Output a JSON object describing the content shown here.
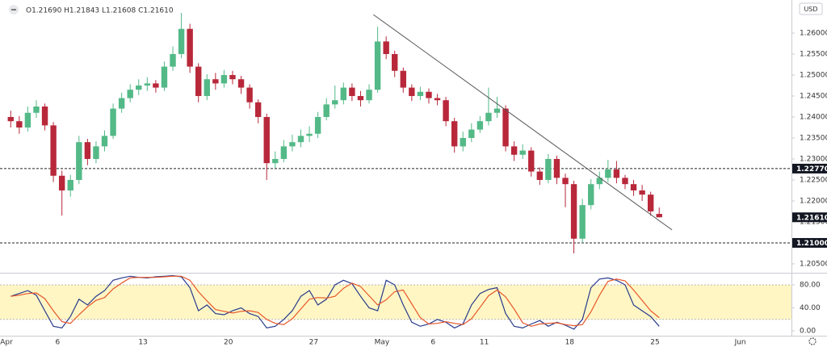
{
  "chart_data": [
    {
      "type": "candlestick",
      "ohlc_legend": "O1.21690 H1.21843 L1.21608 C1.21610",
      "currency": "USD",
      "up_color": "#53b987",
      "down_color": "#b8283a",
      "categories": [
        "Apr",
        null,
        null,
        null,
        null,
        null,
        "6",
        null,
        null,
        null,
        null,
        null,
        null,
        null,
        null,
        null,
        "13",
        null,
        null,
        null,
        null,
        null,
        null,
        null,
        null,
        null,
        "20",
        null,
        null,
        null,
        null,
        null,
        null,
        null,
        null,
        null,
        "27",
        null,
        null,
        null,
        null,
        null,
        null,
        null,
        "May",
        null,
        null,
        null,
        null,
        null,
        "6",
        null,
        null,
        null,
        null,
        null,
        "11",
        null,
        null,
        null,
        null,
        null,
        null,
        null,
        null,
        null,
        "18",
        null,
        null,
        null,
        null,
        null,
        null,
        null,
        null,
        null,
        "25",
        null,
        null,
        null,
        null,
        null,
        null,
        null,
        null,
        null,
        "Jun",
        null,
        null,
        null,
        null,
        null
      ],
      "open": [
        1.24,
        1.239,
        1.2375,
        1.241,
        1.2425,
        1.238,
        1.226,
        1.2225,
        1.225,
        1.234,
        1.23,
        1.233,
        1.2355,
        1.242,
        1.2445,
        1.2465,
        1.2475,
        1.248,
        1.247,
        1.252,
        1.255,
        1.261,
        1.252,
        1.245,
        1.249,
        1.248,
        1.25,
        1.249,
        1.247,
        1.2435,
        1.24,
        1.229,
        1.23,
        1.233,
        1.234,
        1.2355,
        1.236,
        1.24,
        1.243,
        1.244,
        1.247,
        1.245,
        1.244,
        1.2465,
        1.258,
        1.255,
        1.251,
        1.247,
        1.245,
        1.246,
        1.2445,
        1.244,
        1.239,
        1.233,
        1.235,
        1.237,
        1.239,
        1.241,
        1.242,
        1.233,
        1.231,
        1.232,
        1.227,
        1.225,
        1.23,
        1.2255,
        1.224,
        1.211,
        1.219,
        1.224,
        1.2255,
        1.2275,
        1.2255,
        1.224,
        1.2225,
        1.2215,
        1.2169,
        null,
        null,
        null,
        null,
        null,
        null,
        null,
        null,
        null,
        null,
        null,
        null,
        null,
        null,
        null
      ],
      "high": [
        1.2415,
        1.2402,
        1.2425,
        1.244,
        1.2432,
        1.2388,
        1.2272,
        1.2262,
        1.2355,
        1.2348,
        1.2342,
        1.2368,
        1.2432,
        1.2458,
        1.2478,
        1.249,
        1.2495,
        1.2488,
        1.2532,
        1.2568,
        1.2648,
        1.2622,
        1.2528,
        1.2502,
        1.2505,
        1.2512,
        1.251,
        1.2498,
        1.2478,
        1.2442,
        1.2408,
        1.2318,
        1.2345,
        1.2358,
        1.237,
        1.2378,
        1.2412,
        1.2445,
        1.2475,
        1.2482,
        1.248,
        1.2462,
        1.2478,
        1.2615,
        1.2592,
        1.2558,
        1.2518,
        1.2478,
        1.2472,
        1.2468,
        1.2455,
        1.2448,
        1.2398,
        1.2365,
        1.2385,
        1.2402,
        1.247,
        1.2448,
        1.2428,
        1.2342,
        1.2335,
        1.2328,
        1.228,
        1.2312,
        1.2308,
        1.2265,
        1.2248,
        1.2205,
        1.2252,
        1.227,
        1.2298,
        1.2295,
        1.2262,
        1.225,
        1.2238,
        1.2222,
        1.21843,
        null,
        null,
        null,
        null,
        null,
        null,
        null,
        null,
        null,
        null,
        null,
        null,
        null,
        null,
        null
      ],
      "low": [
        1.2375,
        1.236,
        1.2365,
        1.2398,
        1.2368,
        1.2245,
        1.2165,
        1.221,
        1.224,
        1.2285,
        1.229,
        1.2318,
        1.2348,
        1.241,
        1.2435,
        1.2452,
        1.2462,
        1.2458,
        1.2462,
        1.251,
        1.254,
        1.2505,
        1.2435,
        1.244,
        1.2465,
        1.247,
        1.2478,
        1.2455,
        1.242,
        1.2385,
        1.225,
        1.2278,
        1.2292,
        1.2318,
        1.2328,
        1.234,
        1.235,
        1.2392,
        1.242,
        1.243,
        1.2438,
        1.2425,
        1.2432,
        1.2458,
        1.2538,
        1.2495,
        1.2458,
        1.2438,
        1.244,
        1.2432,
        1.2428,
        1.2378,
        1.2315,
        1.2318,
        1.234,
        1.2362,
        1.238,
        1.2398,
        1.2318,
        1.2295,
        1.23,
        1.2258,
        1.2238,
        1.2242,
        1.224,
        1.2185,
        1.2075,
        1.21,
        1.218,
        1.2228,
        1.2245,
        1.2242,
        1.2228,
        1.2212,
        1.22,
        1.2165,
        1.21608,
        null,
        null,
        null,
        null,
        null,
        null,
        null,
        null,
        null,
        null,
        null,
        null,
        null,
        null,
        null
      ],
      "close": [
        1.239,
        1.2375,
        1.241,
        1.2425,
        1.238,
        1.226,
        1.2225,
        1.225,
        1.234,
        1.23,
        1.233,
        1.2355,
        1.242,
        1.2445,
        1.2465,
        1.2475,
        1.248,
        1.247,
        1.252,
        1.255,
        1.261,
        1.252,
        1.245,
        1.249,
        1.248,
        1.25,
        1.249,
        1.247,
        1.2435,
        1.24,
        1.229,
        1.23,
        1.233,
        1.234,
        1.2355,
        1.236,
        1.24,
        1.243,
        1.244,
        1.247,
        1.245,
        1.244,
        1.2465,
        1.258,
        1.255,
        1.251,
        1.247,
        1.245,
        1.246,
        1.2445,
        1.244,
        1.239,
        1.233,
        1.235,
        1.237,
        1.239,
        1.241,
        1.242,
        1.233,
        1.231,
        1.232,
        1.227,
        1.225,
        1.23,
        1.2255,
        1.224,
        1.211,
        1.219,
        1.224,
        1.2255,
        1.2275,
        1.2255,
        1.224,
        1.2225,
        1.2215,
        1.2175,
        1.2161,
        null,
        null,
        null,
        null,
        null,
        null,
        null,
        null,
        null,
        null,
        null,
        null,
        null,
        null,
        null
      ],
      "ylim": [
        1.20288,
        1.26788
      ],
      "yticks": [
        {
          "value": 1.205,
          "label": "1.20500"
        },
        {
          "value": 1.21,
          "label": "1.21000"
        },
        {
          "value": 1.215,
          "label": "1.21500"
        },
        {
          "value": 1.22,
          "label": "1.22000"
        },
        {
          "value": 1.225,
          "label": "1.22500"
        },
        {
          "value": 1.23,
          "label": "1.23000"
        },
        {
          "value": 1.235,
          "label": "1.23500"
        },
        {
          "value": 1.24,
          "label": "1.24000"
        },
        {
          "value": 1.245,
          "label": "1.24500"
        },
        {
          "value": 1.25,
          "label": "1.25000"
        },
        {
          "value": 1.255,
          "label": "1.25500"
        },
        {
          "value": 1.26,
          "label": "1.26000"
        }
      ],
      "levels": [
        {
          "value": 1.2277,
          "label": "1.22770"
        },
        {
          "value": 1.21,
          "label": "1.21000"
        }
      ],
      "last_price": {
        "value": 1.2161,
        "label": "1.21610"
      },
      "trendline": {
        "x": [
          43,
          78
        ],
        "y": [
          1.2644,
          1.2131
        ],
        "color": "#555555"
      }
    },
    {
      "type": "stochastic",
      "series": [
        {
          "color": "#283a8c",
          "values": [
            60,
            65,
            70,
            62,
            35,
            8,
            5,
            25,
            55,
            45,
            60,
            70,
            88,
            92,
            95,
            93,
            92,
            94,
            95,
            96,
            94,
            75,
            35,
            45,
            30,
            28,
            35,
            40,
            30,
            25,
            5,
            8,
            20,
            35,
            60,
            70,
            45,
            55,
            80,
            88,
            82,
            60,
            40,
            35,
            88,
            80,
            45,
            15,
            8,
            12,
            20,
            15,
            5,
            12,
            45,
            65,
            72,
            75,
            30,
            8,
            5,
            12,
            18,
            8,
            15,
            10,
            3,
            20,
            75,
            90,
            92,
            88,
            80,
            45,
            35,
            25,
            8,
            null,
            null,
            null,
            null,
            null,
            null,
            null,
            null,
            null,
            null,
            null,
            null,
            null,
            null,
            null
          ]
        },
        {
          "color": "#e8572a",
          "values": [
            60,
            62,
            65,
            66,
            56,
            35,
            16,
            13,
            28,
            42,
            53,
            58,
            73,
            83,
            92,
            93,
            93,
            93,
            94,
            95,
            95,
            88,
            68,
            52,
            37,
            34,
            31,
            34,
            35,
            32,
            20,
            13,
            11,
            21,
            38,
            55,
            58,
            57,
            60,
            74,
            83,
            77,
            61,
            45,
            54,
            68,
            71,
            47,
            23,
            12,
            13,
            16,
            13,
            11,
            21,
            41,
            61,
            71,
            59,
            38,
            14,
            8,
            12,
            13,
            14,
            11,
            9,
            11,
            33,
            62,
            86,
            90,
            87,
            71,
            53,
            35,
            23,
            null,
            null,
            null,
            null,
            null,
            null,
            null,
            null,
            null,
            null,
            null,
            null,
            null,
            null,
            null
          ]
        }
      ],
      "ylim": [
        -7,
        98.2
      ],
      "yticks": [
        {
          "value": 0,
          "label": "0.00"
        },
        {
          "value": 40,
          "label": "40.00"
        },
        {
          "value": 80,
          "label": "80.00"
        }
      ],
      "band": [
        20,
        80
      ],
      "band_color": "#fff6c4"
    }
  ]
}
